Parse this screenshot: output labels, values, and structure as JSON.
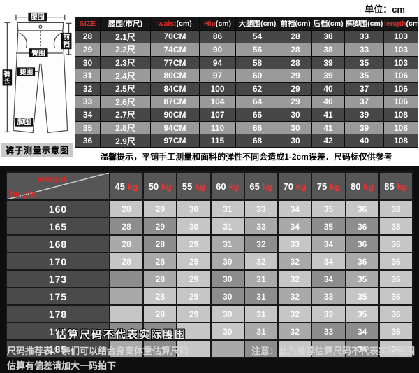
{
  "unit_note": "单位：cm",
  "colors": {
    "accent_red": "#d12c2c",
    "kg_red": "#e23737",
    "dark_row": "#474747",
    "light_row": "#9a9a9a",
    "bottom_bg": "#0e0e0e"
  },
  "diagram": {
    "caption": "裤子测量示意图",
    "labels": {
      "waist": "腰围",
      "front_rise": "前裆",
      "hip": "臀围",
      "thigh": "腿围",
      "length": "裤长",
      "cuff": "脚围"
    }
  },
  "size_table": {
    "headers": [
      {
        "red": "SIZE",
        "text": ""
      },
      {
        "red": "",
        "text": "腰围(市尺)"
      },
      {
        "red": "waist",
        "text": "(cm)"
      },
      {
        "red": "Hip",
        "text": "(cm)"
      },
      {
        "red": "",
        "text": "大腿围(cm)"
      },
      {
        "red": "",
        "text": "前裆(cm)"
      },
      {
        "red": "",
        "text": "后档(cm)"
      },
      {
        "red": "",
        "text": "裤脚围(cm)"
      },
      {
        "red": "length",
        "text": "(cm)"
      }
    ],
    "rows": [
      [
        "28",
        "2.1尺",
        "70CM",
        "86",
        "54",
        "28",
        "38",
        "33",
        "103"
      ],
      [
        "29",
        "2.2尺",
        "74CM",
        "90",
        "56",
        "28",
        "38",
        "33",
        "103"
      ],
      [
        "30",
        "2.3尺",
        "77CM",
        "94",
        "58",
        "28",
        "39",
        "35",
        "103"
      ],
      [
        "31",
        "2.4尺",
        "80CM",
        "97",
        "60",
        "29",
        "39",
        "35",
        "106"
      ],
      [
        "32",
        "2.5尺",
        "84CM",
        "100",
        "62",
        "29",
        "40",
        "37",
        "106"
      ],
      [
        "33",
        "2.6尺",
        "87CM",
        "104",
        "64",
        "29",
        "40",
        "37",
        "106"
      ],
      [
        "34",
        "2.7尺",
        "90CM",
        "107",
        "66",
        "30",
        "41",
        "39",
        "108"
      ],
      [
        "35",
        "2.8尺",
        "94CM",
        "110",
        "66",
        "30",
        "41",
        "39",
        "108"
      ],
      [
        "36",
        "2.9尺",
        "97CM",
        "115",
        "68",
        "30",
        "42",
        "40",
        "108"
      ]
    ]
  },
  "tip": "温馨提示，平铺手工测量和面料的弹性不同会造成1-2cm误差．尺码标仅供参考",
  "recommend": {
    "corner": {
      "top": "weight",
      "bottom": "height"
    },
    "weight_unit": "kg",
    "weights": [
      "45",
      "50",
      "55",
      "60",
      "65",
      "70",
      "75",
      "80",
      "85"
    ],
    "heights": [
      "160",
      "165",
      "168",
      "170",
      "173",
      "175",
      "178",
      "180",
      "185"
    ],
    "cells": [
      [
        "28",
        "29",
        "30",
        "31",
        "33",
        "34",
        "35",
        "36",
        "38"
      ],
      [
        "28",
        "29",
        "30",
        "31",
        "33",
        "34",
        "35",
        "36",
        "38"
      ],
      [
        "28",
        "28",
        "29",
        "31",
        "32",
        "33",
        "34",
        "36",
        "36"
      ],
      [
        "28",
        "28",
        "29",
        "30",
        "32",
        "32",
        "34",
        "36",
        "36"
      ],
      [
        "",
        "28",
        "29",
        "30",
        "31",
        "32",
        "34",
        "35",
        "36"
      ],
      [
        "",
        "28",
        "29",
        "30",
        "31",
        "32",
        "33",
        "35",
        "36"
      ],
      [
        "",
        "28",
        "29",
        "30",
        "31",
        "32",
        "33",
        "35",
        "36"
      ],
      [
        "",
        "",
        "",
        "30",
        "31",
        "32",
        "33",
        "34",
        "36"
      ],
      [
        "",
        "",
        "",
        "",
        "",
        "",
        "",
        "34",
        "36"
      ]
    ],
    "overlay_note": "估算尺码不代表实际腰围"
  },
  "footer": {
    "left_line1": "尺码推荐表：亲们可以结合身高体重估算尺码",
    "left_line2": "估算有偏差请加大一码拍下",
    "right": "注意：此为推荐估算尺码不代表实际腰围"
  }
}
